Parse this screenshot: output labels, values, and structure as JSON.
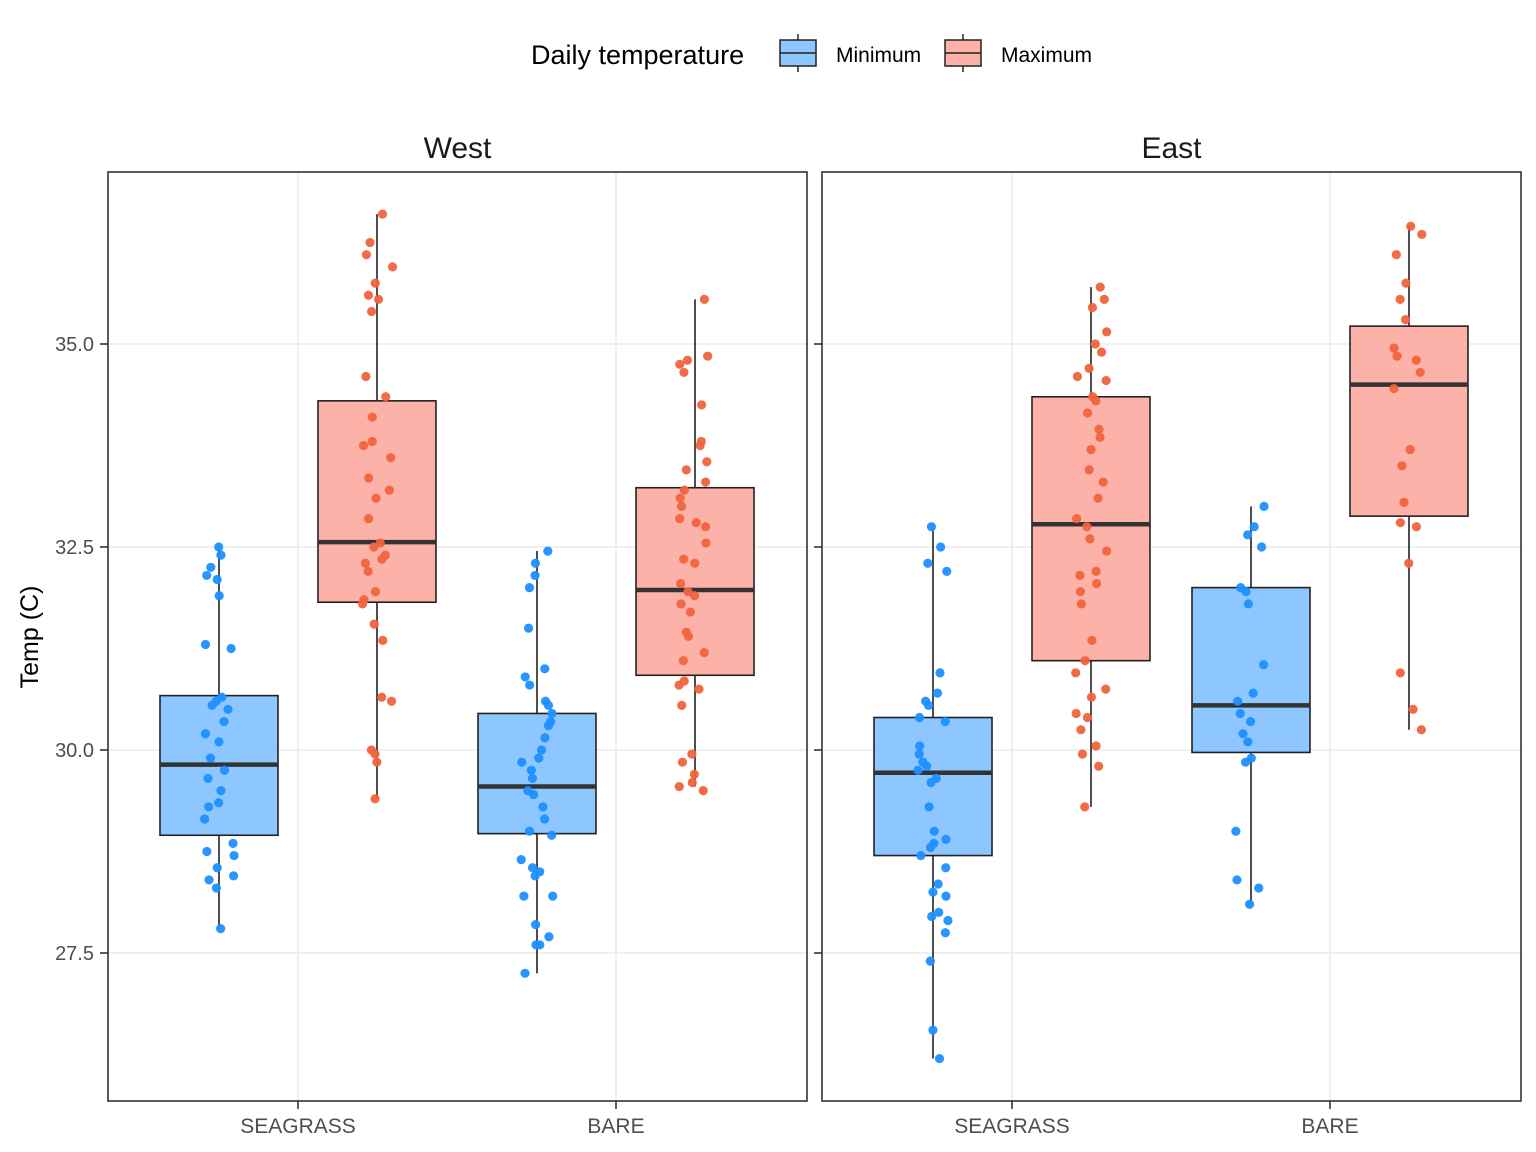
{
  "chart_data": {
    "type": "boxplot",
    "ylabel": "Temp (C)",
    "ylim": [
      25.8,
      37.0
    ],
    "y_ticks": [
      "27.5",
      "30.0",
      "32.5",
      "35.0"
    ],
    "grid": true,
    "legend": {
      "title": "Daily temperature",
      "placement": "top",
      "entries": [
        {
          "name": "Minimum",
          "fill": "#1e90ff",
          "point_color": "#1e90ff"
        },
        {
          "name": "Maximum",
          "fill": "#fa8072",
          "point_color": "#f0643c"
        }
      ]
    },
    "categories": [
      "SEAGRASS",
      "BARE"
    ],
    "facets": [
      {
        "title": "West",
        "groups": [
          {
            "category": "SEAGRASS",
            "series": "Minimum",
            "whisker_low": 27.8,
            "q1": 28.95,
            "median": 29.82,
            "q3": 30.67,
            "whisker_high": 32.5,
            "points": [
              32.5,
              32.4,
              32.15,
              32.25,
              32.1,
              31.9,
              31.3,
              31.25,
              30.65,
              30.6,
              30.55,
              30.5,
              30.35,
              30.2,
              30.1,
              29.9,
              29.75,
              29.65,
              29.5,
              29.35,
              29.3,
              29.15,
              28.85,
              28.7,
              28.75,
              28.55,
              28.45,
              28.4,
              28.3,
              27.8
            ]
          },
          {
            "category": "SEAGRASS",
            "series": "Maximum",
            "whisker_low": 29.4,
            "q1": 31.82,
            "median": 32.56,
            "q3": 34.3,
            "whisker_high": 36.6,
            "points": [
              36.6,
              36.25,
              36.1,
              35.95,
              35.75,
              35.6,
              35.55,
              35.4,
              34.6,
              34.35,
              34.1,
              33.8,
              33.75,
              33.6,
              33.35,
              33.2,
              33.1,
              32.85,
              32.55,
              32.5,
              32.4,
              32.35,
              32.3,
              32.2,
              31.95,
              31.85,
              31.8,
              31.55,
              31.35,
              30.65,
              30.6,
              30.0,
              29.95,
              29.85,
              29.4
            ]
          },
          {
            "category": "BARE",
            "series": "Minimum",
            "whisker_low": 27.25,
            "q1": 28.97,
            "median": 29.55,
            "q3": 30.45,
            "whisker_high": 32.45,
            "points": [
              32.45,
              32.3,
              32.15,
              32.0,
              31.5,
              31.0,
              30.9,
              30.8,
              30.6,
              30.55,
              30.45,
              30.35,
              30.3,
              30.15,
              30.0,
              29.9,
              29.85,
              29.75,
              29.65,
              29.5,
              29.45,
              29.3,
              29.15,
              29.0,
              28.95,
              28.65,
              28.55,
              28.5,
              28.45,
              28.2,
              28.2,
              27.85,
              27.7,
              27.6,
              27.6,
              27.25
            ]
          },
          {
            "category": "BARE",
            "series": "Maximum",
            "whisker_low": 29.55,
            "q1": 30.92,
            "median": 31.97,
            "q3": 33.23,
            "whisker_high": 35.55,
            "points": [
              35.55,
              34.85,
              34.8,
              34.75,
              34.65,
              34.25,
              33.8,
              33.75,
              33.55,
              33.45,
              33.3,
              33.2,
              33.1,
              33.0,
              32.85,
              32.8,
              32.75,
              32.55,
              32.35,
              32.3,
              32.05,
              31.95,
              31.9,
              31.8,
              31.7,
              31.45,
              31.4,
              31.2,
              31.1,
              30.85,
              30.8,
              30.75,
              30.55,
              29.95,
              29.85,
              29.7,
              29.6,
              29.55,
              29.5
            ]
          }
        ]
      },
      {
        "title": "East",
        "groups": [
          {
            "category": "SEAGRASS",
            "series": "Minimum",
            "whisker_low": 26.2,
            "q1": 28.7,
            "median": 29.72,
            "q3": 30.4,
            "whisker_high": 32.75,
            "points": [
              32.75,
              32.5,
              32.3,
              32.2,
              30.95,
              30.7,
              30.6,
              30.55,
              30.4,
              30.35,
              30.05,
              29.95,
              29.85,
              29.8,
              29.75,
              29.65,
              29.6,
              29.3,
              29.0,
              28.9,
              28.85,
              28.8,
              28.7,
              28.55,
              28.35,
              28.25,
              28.2,
              28.0,
              27.95,
              27.9,
              27.75,
              27.4,
              26.55,
              26.2
            ]
          },
          {
            "category": "SEAGRASS",
            "series": "Maximum",
            "whisker_low": 29.3,
            "q1": 31.1,
            "median": 32.78,
            "q3": 34.35,
            "whisker_high": 35.7,
            "points": [
              35.7,
              35.55,
              35.45,
              35.15,
              35.0,
              34.9,
              34.7,
              34.6,
              34.55,
              34.35,
              34.3,
              34.15,
              33.95,
              33.85,
              33.7,
              33.45,
              33.3,
              33.1,
              32.85,
              32.75,
              32.6,
              32.45,
              32.2,
              32.15,
              32.05,
              31.95,
              31.8,
              31.35,
              31.1,
              30.95,
              30.75,
              30.65,
              30.45,
              30.4,
              30.25,
              30.05,
              29.95,
              29.8,
              29.3
            ]
          },
          {
            "category": "BARE",
            "series": "Minimum",
            "whisker_low": 28.1,
            "q1": 29.97,
            "median": 30.55,
            "q3": 32.0,
            "whisker_high": 33.0,
            "points": [
              33.0,
              32.75,
              32.65,
              32.5,
              32.0,
              31.95,
              31.8,
              31.05,
              30.7,
              30.6,
              30.45,
              30.35,
              30.2,
              30.1,
              29.9,
              29.85,
              29.0,
              28.4,
              28.3,
              28.1
            ]
          },
          {
            "category": "BARE",
            "series": "Maximum",
            "whisker_low": 30.25,
            "q1": 32.88,
            "median": 34.5,
            "q3": 35.22,
            "whisker_high": 36.45,
            "points": [
              36.45,
              36.35,
              36.1,
              35.75,
              35.55,
              35.3,
              34.95,
              34.85,
              34.8,
              34.65,
              34.45,
              33.7,
              33.5,
              33.05,
              32.8,
              32.75,
              32.3,
              30.95,
              30.5,
              30.25
            ]
          }
        ]
      }
    ]
  }
}
